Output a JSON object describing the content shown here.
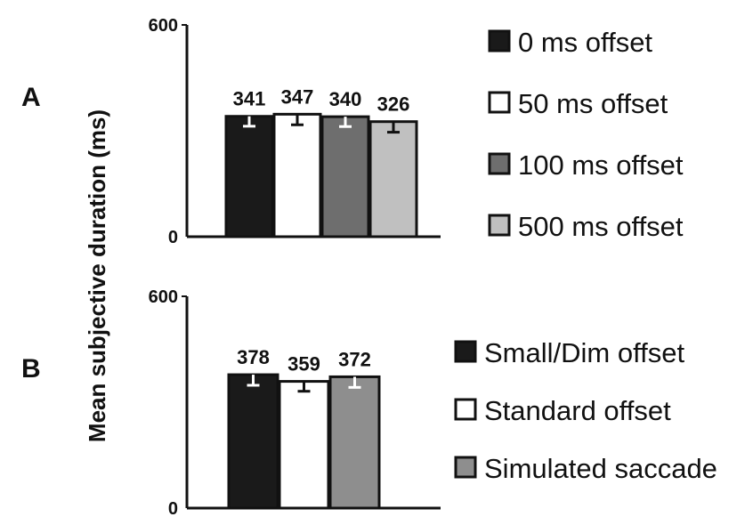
{
  "chart_data": [
    {
      "type": "bar",
      "panel_label": "A",
      "ylabel": "Mean subjective duration (ms)",
      "ylim": [
        0,
        600
      ],
      "yticks": [
        "0",
        "600"
      ],
      "categories": [
        "0 ms offset",
        "50 ms offset",
        "100 ms offset",
        "500 ms offset"
      ],
      "values": [
        341,
        347,
        340,
        326
      ],
      "value_labels": [
        "341",
        "347",
        "340",
        "326"
      ],
      "errors": [
        28,
        30,
        28,
        30
      ],
      "colors": [
        "#1a1a1a",
        "#ffffff",
        "#6e6e6e",
        "#c0c0c0"
      ],
      "legend": [
        {
          "label": "0 ms offset",
          "color": "#1a1a1a"
        },
        {
          "label": "50 ms offset",
          "color": "#ffffff"
        },
        {
          "label": "100 ms offset",
          "color": "#6e6e6e"
        },
        {
          "label": "500 ms offset",
          "color": "#c0c0c0"
        }
      ],
      "legend_position": "right"
    },
    {
      "type": "bar",
      "panel_label": "B",
      "ylim": [
        0,
        600
      ],
      "yticks": [
        "0",
        "600"
      ],
      "categories": [
        "Small/Dim offset",
        "Standard offset",
        "Simulated saccade"
      ],
      "values": [
        378,
        359,
        372
      ],
      "value_labels": [
        "378",
        "359",
        "372"
      ],
      "errors": [
        30,
        28,
        30
      ],
      "colors": [
        "#1a1a1a",
        "#ffffff",
        "#8e8e8e"
      ],
      "legend": [
        {
          "label": "Small/Dim offset",
          "color": "#1a1a1a"
        },
        {
          "label": "Standard offset",
          "color": "#ffffff"
        },
        {
          "label": "Simulated saccade",
          "color": "#8e8e8e"
        }
      ],
      "legend_position": "right"
    }
  ]
}
